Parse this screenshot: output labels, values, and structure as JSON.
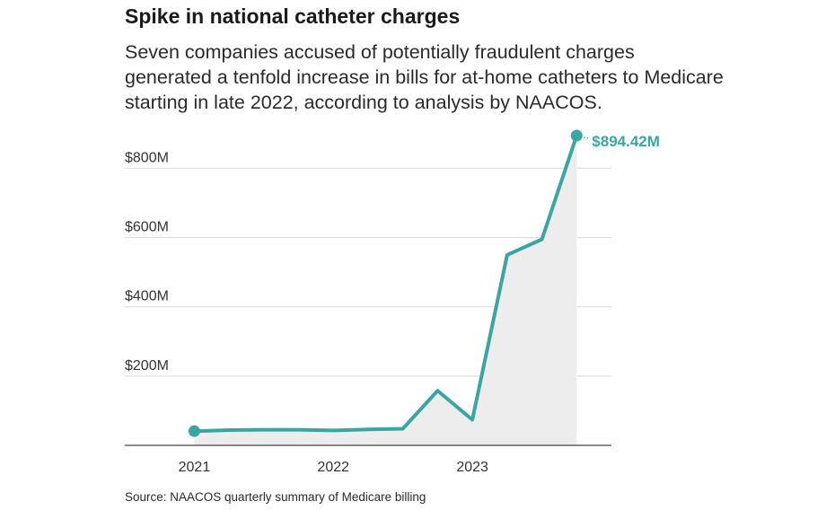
{
  "title": "Spike in national catheter charges",
  "subtitle": "Seven companies accused of potentially fraudulent charges generated a tenfold increase in bills for at-home catheters to Medicare starting in late 2022, according to analysis by NAACOS.",
  "source": "Source:  NAACOS quarterly summary of Medicare billing",
  "colors": {
    "line": "#3aa6a3",
    "area": "#ededed",
    "grid": "#d9d9d9",
    "axis": "#444444"
  },
  "chart_data": {
    "type": "line",
    "title": "Spike in national catheter charges",
    "xlabel": "",
    "ylabel": "",
    "ylim": [
      0,
      894.42
    ],
    "y_unit": "millions of dollars",
    "grid": true,
    "area_fill": true,
    "y_ticks": [
      {
        "value": 200,
        "label": "$200M"
      },
      {
        "value": 400,
        "label": "$400M"
      },
      {
        "value": 600,
        "label": "$600M"
      },
      {
        "value": 800,
        "label": "$800M"
      }
    ],
    "x_ticks": [
      {
        "value": 2021.0,
        "label": "2021"
      },
      {
        "value": 2022.0,
        "label": "2022"
      },
      {
        "value": 2023.0,
        "label": "2023"
      }
    ],
    "xlim": [
      2020.5,
      2024.0
    ],
    "series": [
      {
        "points": [
          {
            "x": 2021.0,
            "y": 41
          },
          {
            "x": 2021.25,
            "y": 44
          },
          {
            "x": 2021.5,
            "y": 45
          },
          {
            "x": 2021.75,
            "y": 45
          },
          {
            "x": 2022.0,
            "y": 43
          },
          {
            "x": 2022.25,
            "y": 46
          },
          {
            "x": 2022.5,
            "y": 48
          },
          {
            "x": 2022.75,
            "y": 158
          },
          {
            "x": 2023.0,
            "y": 74
          },
          {
            "x": 2023.25,
            "y": 550
          },
          {
            "x": 2023.5,
            "y": 595
          },
          {
            "x": 2023.75,
            "y": 894.42
          }
        ]
      }
    ],
    "annotations": [
      {
        "text": "$894.42M",
        "x": 2023.75,
        "y": 894.42
      }
    ]
  }
}
